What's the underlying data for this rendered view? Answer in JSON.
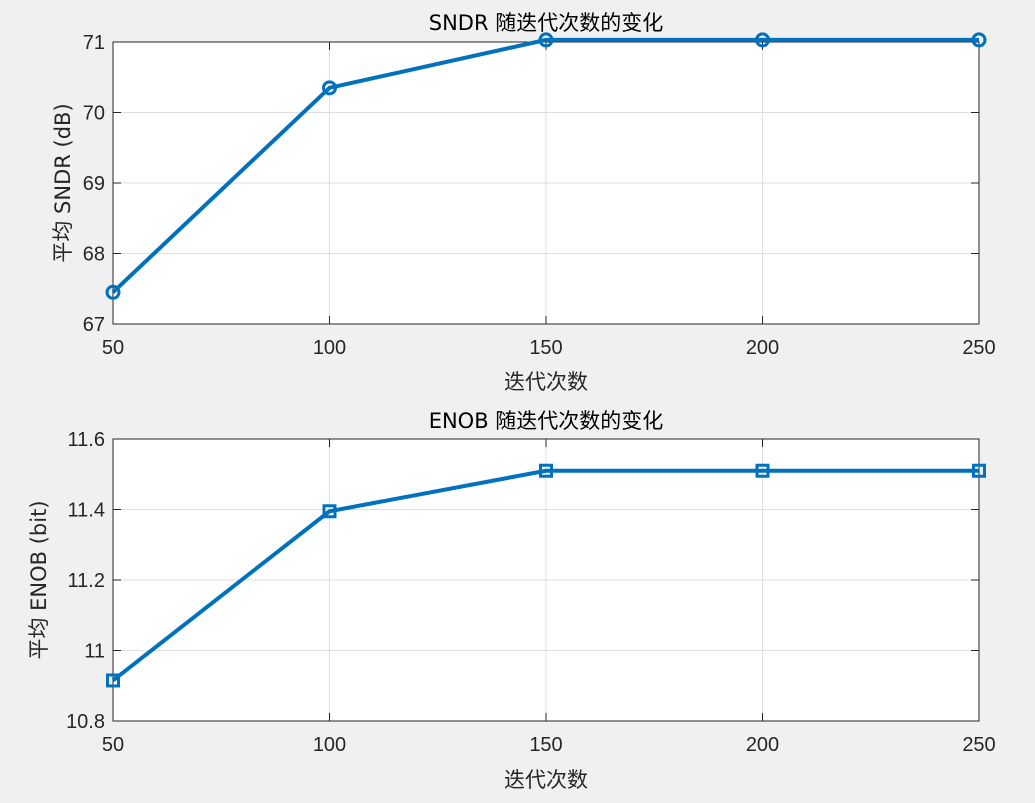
{
  "chart_data": [
    {
      "type": "line",
      "title": "SNDR 随迭代次数的变化",
      "xlabel": "迭代次数",
      "ylabel": "平均 SNDR (dB)",
      "x": [
        50,
        100,
        150,
        200,
        250
      ],
      "xlim": [
        50,
        250
      ],
      "xticks": [
        50,
        100,
        150,
        200,
        250
      ],
      "ylim": [
        67,
        71
      ],
      "yticks": [
        67,
        68,
        69,
        70,
        71
      ],
      "grid": true,
      "series": [
        {
          "values": [
            67.45,
            70.35,
            71.03,
            71.03,
            71.03
          ],
          "color": "#0072bd",
          "marker": "circle"
        }
      ]
    },
    {
      "type": "line",
      "title": "ENOB 随迭代次数的变化",
      "xlabel": "迭代次数",
      "ylabel": "平均 ENOB (bit)",
      "x": [
        50,
        100,
        150,
        200,
        250
      ],
      "xlim": [
        50,
        250
      ],
      "xticks": [
        50,
        100,
        150,
        200,
        250
      ],
      "ylim": [
        10.8,
        11.6
      ],
      "yticks": [
        10.8,
        11,
        11.2,
        11.4,
        11.6
      ],
      "ytick_labels": [
        "10.8",
        "11",
        "11.2",
        "11.4",
        "11.6"
      ],
      "grid": true,
      "series": [
        {
          "values": [
            10.915,
            11.395,
            11.51,
            11.51,
            11.51
          ],
          "color": "#0072bd",
          "marker": "square"
        }
      ]
    }
  ]
}
